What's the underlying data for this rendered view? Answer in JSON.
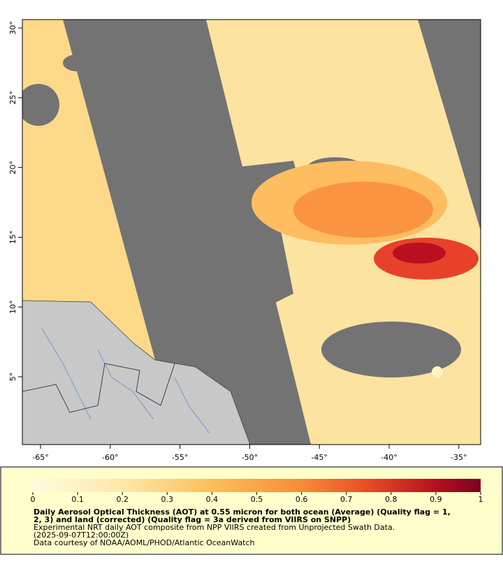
{
  "map": {
    "lon_ticks": [
      {
        "value": -65,
        "label": "-65°"
      },
      {
        "value": -60,
        "label": "-60°"
      },
      {
        "value": -55,
        "label": "-55°"
      },
      {
        "value": -50,
        "label": "-50°"
      },
      {
        "value": -45,
        "label": "-45°"
      },
      {
        "value": -40,
        "label": "-40°"
      },
      {
        "value": -35,
        "label": "-35°"
      }
    ],
    "lat_ticks": [
      {
        "value": 5,
        "label": "5°"
      },
      {
        "value": 10,
        "label": "10°"
      },
      {
        "value": 15,
        "label": "15°"
      },
      {
        "value": 20,
        "label": "20°"
      },
      {
        "value": 25,
        "label": "25°"
      },
      {
        "value": 30,
        "label": "30°"
      }
    ]
  },
  "colorbar": {
    "range": [
      0,
      1
    ],
    "ticks": [
      0,
      0.1,
      0.2,
      0.3,
      0.4,
      0.5,
      0.6,
      0.7,
      0.8,
      0.9,
      1
    ]
  },
  "caption": {
    "title_lines": [
      "Daily Aerosol Optical Thickness (AOT) at 0.55 micron for both ocean (Average) (Quality flag = 1,",
      "2, 3) and land (corrected) (Quality flag = 3a derived from VIIRS on SNPP)"
    ],
    "lines": [
      "Experimental NRT daily AOT composite from NPP VIIRS created from Unprojected Swath Data.",
      "(2025-09-07T12:00:00Z)",
      "Data courtesy of NOAA/AOML/PHOD/Atlantic OceanWatch"
    ]
  }
}
